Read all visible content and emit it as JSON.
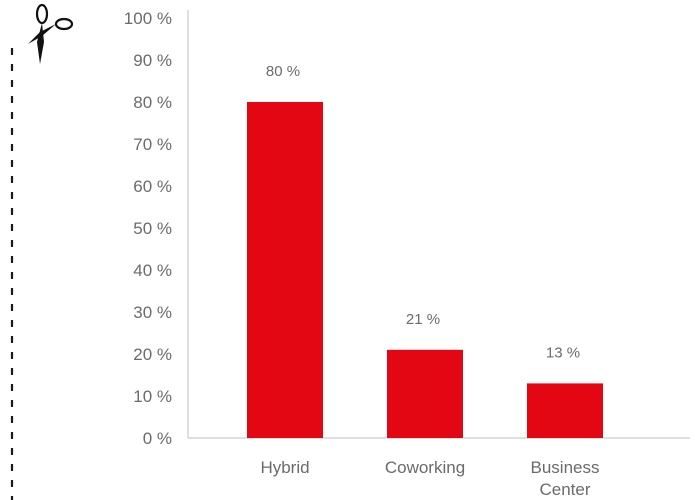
{
  "chart_data": {
    "type": "bar",
    "categories": [
      "Hybrid",
      "Coworking",
      "Business Center"
    ],
    "category_lines": [
      [
        "Hybrid"
      ],
      [
        "Coworking"
      ],
      [
        "Business",
        "Center"
      ]
    ],
    "values": [
      80,
      21,
      13
    ],
    "data_labels": [
      "80 %",
      "21 %",
      "13 %"
    ],
    "title": "",
    "xlabel": "",
    "ylabel": "",
    "ylim": [
      0,
      100
    ],
    "yticks": [
      0,
      10,
      20,
      30,
      40,
      50,
      60,
      70,
      80,
      90,
      100
    ],
    "ytick_labels": [
      "0 %",
      "10 %",
      "20 %",
      "30 %",
      "40 %",
      "50 %",
      "60 %",
      "70 %",
      "80 %",
      "90 %",
      "100 %"
    ],
    "grid": false,
    "legend": "none",
    "bar_color": "#e30613"
  },
  "decoration": {
    "scissors_icon": "scissors-icon",
    "cut_line_color": "#1a1a1a"
  }
}
